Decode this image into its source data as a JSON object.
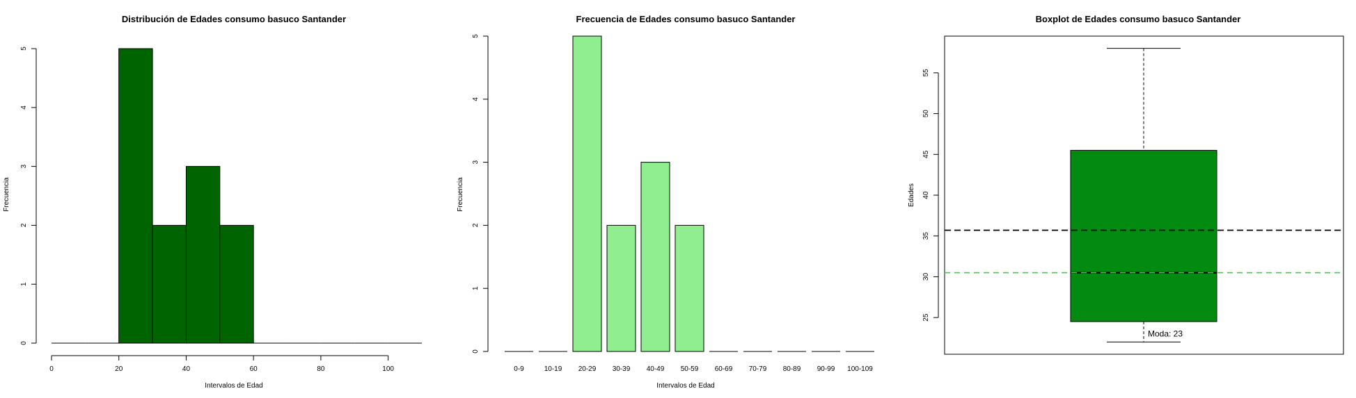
{
  "chart_data": [
    {
      "type": "bar",
      "subtype": "histogram",
      "title": "Distribución de Edades consumo basuco Santander",
      "xlabel": "Intervalos de Edad",
      "ylabel": "Frecuencia",
      "bins": [
        [
          0,
          10
        ],
        [
          10,
          20
        ],
        [
          20,
          30
        ],
        [
          30,
          40
        ],
        [
          40,
          50
        ],
        [
          50,
          60
        ],
        [
          60,
          70
        ],
        [
          70,
          80
        ],
        [
          80,
          90
        ],
        [
          90,
          100
        ],
        [
          100,
          110
        ]
      ],
      "values": [
        0,
        0,
        5,
        2,
        3,
        2,
        0,
        0,
        0,
        0,
        0
      ],
      "xticks": [
        0,
        20,
        40,
        60,
        80,
        100
      ],
      "yticks": [
        0,
        1,
        2,
        3,
        4,
        5
      ],
      "xlim": [
        0,
        110
      ],
      "ylim": [
        0,
        5
      ],
      "color": "#006400"
    },
    {
      "type": "bar",
      "title": "Frecuencia de Edades consumo basuco Santander",
      "xlabel": "Intervalos de Edad",
      "ylabel": "Frecuencia",
      "categories": [
        "0-9",
        "10-19",
        "20-29",
        "30-39",
        "40-49",
        "50-59",
        "60-69",
        "70-79",
        "80-89",
        "90-99",
        "100-109"
      ],
      "values": [
        0,
        0,
        5,
        2,
        3,
        2,
        0,
        0,
        0,
        0,
        0
      ],
      "yticks": [
        0,
        1,
        2,
        3,
        4,
        5
      ],
      "ylim": [
        0,
        5
      ],
      "color": "#90EE90"
    },
    {
      "type": "boxplot",
      "title": "Boxplot de Edades consumo basuco Santander",
      "ylabel": "Edades",
      "min": 22,
      "q1": 24.5,
      "median": 30.5,
      "q3": 45.5,
      "max": 58,
      "mean": 35.7,
      "mean_line_color": "#000000",
      "median_line_color": "#5cb85c",
      "yticks": [
        25,
        30,
        35,
        40,
        45,
        50,
        55
      ],
      "ylim": [
        20.5,
        59.5
      ],
      "color": "#038a10",
      "annotation": "Moda: 23"
    }
  ]
}
